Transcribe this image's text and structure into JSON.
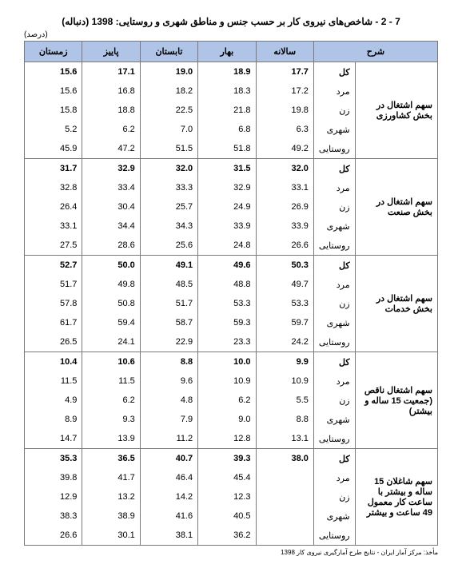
{
  "title": "7 - 2 - شاخص‌های نیروی کار بر حسب جنس و مناطق شهری و روستایی: 1398 (دنباله)",
  "unit": "(درصد)",
  "columns": [
    "شرح",
    "",
    "سالانه",
    "بهار",
    "تابستان",
    "پاییز",
    "زمستان"
  ],
  "footer": "مأخذ: مرکز آمار ایران - نتایج طرح آمارگیری نیروی کار 1398",
  "groups": [
    {
      "label": "سهم اشتغال در بخش کشاورزی",
      "rows": [
        {
          "sub": "کل",
          "vals": [
            "17.7",
            "18.9",
            "19.0",
            "17.1",
            "15.6"
          ],
          "total": true
        },
        {
          "sub": "مرد",
          "vals": [
            "17.2",
            "18.3",
            "18.2",
            "16.8",
            "15.6"
          ]
        },
        {
          "sub": "زن",
          "vals": [
            "19.8",
            "21.8",
            "22.5",
            "18.8",
            "15.8"
          ]
        },
        {
          "sub": "شهری",
          "vals": [
            "6.3",
            "6.8",
            "7.0",
            "6.2",
            "5.2"
          ]
        },
        {
          "sub": "روستایی",
          "vals": [
            "49.2",
            "51.8",
            "51.5",
            "47.2",
            "45.9"
          ]
        }
      ]
    },
    {
      "label": "سهم اشتغال در بخش صنعت",
      "rows": [
        {
          "sub": "کل",
          "vals": [
            "32.0",
            "31.5",
            "32.0",
            "32.9",
            "31.7"
          ],
          "total": true
        },
        {
          "sub": "مرد",
          "vals": [
            "33.1",
            "32.9",
            "33.3",
            "33.4",
            "32.8"
          ]
        },
        {
          "sub": "زن",
          "vals": [
            "26.9",
            "24.9",
            "25.7",
            "30.4",
            "26.4"
          ]
        },
        {
          "sub": "شهری",
          "vals": [
            "33.9",
            "33.9",
            "34.3",
            "34.4",
            "33.1"
          ]
        },
        {
          "sub": "روستایی",
          "vals": [
            "26.6",
            "24.8",
            "25.6",
            "28.6",
            "27.5"
          ]
        }
      ]
    },
    {
      "label": "سهم اشتغال در بخش خدمات",
      "rows": [
        {
          "sub": "کل",
          "vals": [
            "50.3",
            "49.6",
            "49.1",
            "50.0",
            "52.7"
          ],
          "total": true
        },
        {
          "sub": "مرد",
          "vals": [
            "49.7",
            "48.8",
            "48.5",
            "49.8",
            "51.7"
          ]
        },
        {
          "sub": "زن",
          "vals": [
            "53.3",
            "53.3",
            "51.7",
            "50.8",
            "57.8"
          ]
        },
        {
          "sub": "شهری",
          "vals": [
            "59.7",
            "59.3",
            "58.7",
            "59.4",
            "61.7"
          ]
        },
        {
          "sub": "روستایی",
          "vals": [
            "24.2",
            "23.3",
            "22.9",
            "24.1",
            "26.5"
          ]
        }
      ]
    },
    {
      "label": "سهم اشتغال ناقص (جمعیت 15 ساله و بیشتر)",
      "rows": [
        {
          "sub": "کل",
          "vals": [
            "9.9",
            "10.0",
            "8.8",
            "10.6",
            "10.4"
          ],
          "total": true
        },
        {
          "sub": "مرد",
          "vals": [
            "10.9",
            "10.9",
            "9.6",
            "11.5",
            "11.5"
          ]
        },
        {
          "sub": "زن",
          "vals": [
            "5.5",
            "6.2",
            "4.8",
            "6.2",
            "4.9"
          ]
        },
        {
          "sub": "شهری",
          "vals": [
            "8.8",
            "9.0",
            "7.9",
            "9.3",
            "8.9"
          ]
        },
        {
          "sub": "روستایی",
          "vals": [
            "13.1",
            "12.8",
            "11.2",
            "13.9",
            "14.7"
          ]
        }
      ]
    },
    {
      "label": "سهم شاغلان 15 ساله و بیشتر با ساعت کار معمول 49 ساعت و بیشتر",
      "rows": [
        {
          "sub": "کل",
          "vals": [
            "38.0",
            "39.3",
            "40.7",
            "36.5",
            "35.3"
          ],
          "total": true
        },
        {
          "sub": "مرد",
          "vals": [
            "",
            "45.4",
            "46.4",
            "41.7",
            "39.8"
          ]
        },
        {
          "sub": "زن",
          "vals": [
            "",
            "12.3",
            "14.2",
            "13.2",
            "12.9"
          ]
        },
        {
          "sub": "شهری",
          "vals": [
            "",
            "40.5",
            "41.6",
            "38.9",
            "38.3"
          ]
        },
        {
          "sub": "روستایی",
          "vals": [
            "",
            "36.2",
            "38.1",
            "30.1",
            "26.6"
          ]
        }
      ]
    }
  ]
}
